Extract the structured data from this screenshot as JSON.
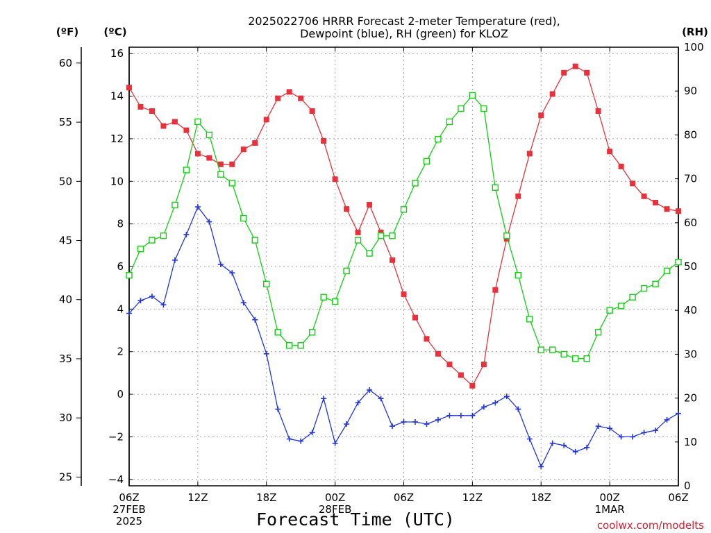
{
  "title_lines": [
    "2025022706 HRRR Forecast 2-meter Temperature (red),",
    "Dewpoint (blue), RH (green) for KLOZ"
  ],
  "units": {
    "fahrenheit": "(ºF)",
    "celsius": "(ºC)",
    "rh": "(RH)"
  },
  "xlabel": "Forecast Time (UTC)",
  "credit": "coolwx.com/modelts",
  "colors": {
    "temperature": "#e8313a",
    "dewpoint": "#2035e0",
    "rh": "#10d010",
    "credit": "#d0202f"
  },
  "chart_data": {
    "type": "line",
    "title": "2025022706 HRRR Forecast 2-meter Temperature (red), Dewpoint (blue), RH (green) for KLOZ",
    "xlabel": "Forecast Time (UTC)",
    "x_ticks": [
      {
        "hour": 0,
        "lines": [
          "06Z",
          "27FEB",
          "2025"
        ]
      },
      {
        "hour": 6,
        "lines": [
          "12Z"
        ]
      },
      {
        "hour": 12,
        "lines": [
          "18Z"
        ]
      },
      {
        "hour": 18,
        "lines": [
          "00Z",
          "28FEB"
        ]
      },
      {
        "hour": 24,
        "lines": [
          "06Z"
        ]
      },
      {
        "hour": 30,
        "lines": [
          "12Z"
        ]
      },
      {
        "hour": 36,
        "lines": [
          "18Z"
        ]
      },
      {
        "hour": 42,
        "lines": [
          "00Z",
          "1MAR"
        ]
      },
      {
        "hour": 48,
        "lines": [
          "06Z"
        ]
      }
    ],
    "hours_start": "2025-02-27 06Z",
    "xlim_hours": [
      0,
      48
    ],
    "celsius_axis": {
      "ylim": [
        -4.3,
        16.3
      ],
      "ticks": [
        "16",
        "14",
        "12",
        "10",
        "8",
        "6",
        "4",
        "2",
        "0",
        "−2",
        "−4"
      ]
    },
    "fahrenheit_axis": {
      "ticks": [
        "60",
        "55",
        "50",
        "45",
        "40",
        "35",
        "30",
        "25"
      ]
    },
    "rh_axis": {
      "ylim": [
        0,
        100
      ],
      "ticks": [
        "100",
        "90",
        "80",
        "70",
        "60",
        "50",
        "40",
        "30",
        "20",
        "10",
        "0"
      ]
    },
    "grid": true,
    "series": [
      {
        "name": "Temperature",
        "unit": "C",
        "marker": "filled-square",
        "values": [
          14.4,
          13.5,
          13.3,
          12.6,
          12.8,
          12.4,
          11.3,
          11.1,
          10.8,
          10.8,
          11.5,
          11.8,
          12.9,
          13.9,
          14.2,
          13.9,
          13.3,
          11.9,
          10.1,
          8.7,
          7.6,
          8.9,
          7.6,
          6.3,
          4.7,
          3.6,
          2.6,
          1.9,
          1.4,
          0.9,
          0.4,
          1.4,
          4.9,
          7.3,
          9.3,
          11.3,
          13.1,
          14.1,
          15.1,
          15.4,
          15.1,
          13.3,
          11.4,
          10.7,
          9.9,
          9.3,
          9.0,
          8.7,
          8.6
        ]
      },
      {
        "name": "Dewpoint",
        "unit": "C",
        "marker": "plus",
        "values": [
          3.8,
          4.4,
          4.6,
          4.2,
          6.3,
          7.5,
          8.8,
          8.1,
          6.1,
          5.7,
          4.3,
          3.5,
          1.9,
          -0.7,
          -2.1,
          -2.2,
          -1.8,
          -0.2,
          -2.3,
          -1.4,
          -0.4,
          0.2,
          -0.2,
          -1.5,
          -1.3,
          -1.3,
          -1.4,
          -1.2,
          -1.0,
          -1.0,
          -1.0,
          -0.6,
          -0.4,
          -0.1,
          -0.7,
          -2.1,
          -3.4,
          -2.3,
          -2.4,
          -2.7,
          -2.5,
          -1.5,
          -1.6,
          -2.0,
          -2.0,
          -1.8,
          -1.7,
          -1.2,
          -0.9
        ]
      },
      {
        "name": "RH",
        "unit": "%",
        "marker": "open-square",
        "values": [
          48,
          54,
          56,
          57,
          64,
          72,
          83,
          80,
          71,
          69,
          61,
          56,
          46,
          35,
          32,
          32,
          35,
          43,
          42,
          49,
          56,
          53,
          57,
          57,
          63,
          69,
          74,
          79,
          83,
          86,
          89,
          86,
          68,
          57,
          48,
          38,
          31,
          31,
          30,
          29,
          29,
          35,
          40,
          41,
          43,
          45,
          46,
          49,
          51
        ]
      }
    ]
  }
}
